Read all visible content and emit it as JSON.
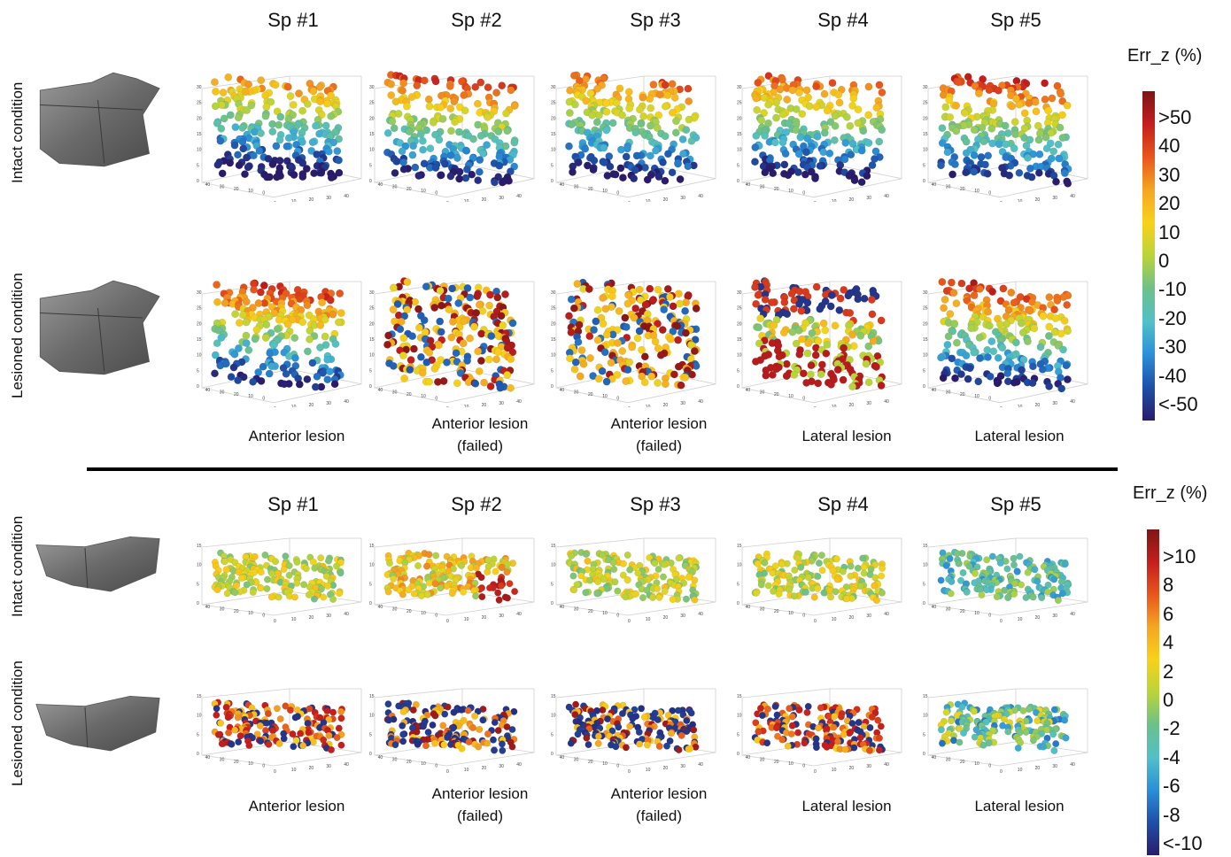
{
  "panels": [
    {
      "specimens": [
        "Sp #1",
        "Sp #2",
        "Sp #3",
        "Sp #4",
        "Sp #5"
      ],
      "row_labels": [
        "Intact condition",
        "Lesioned condition"
      ],
      "lesion_labels": [
        [
          "Anterior lesion"
        ],
        [
          "Anterior lesion",
          "(failed)"
        ],
        [
          "Anterior lesion",
          "(failed)"
        ],
        [
          "Lateral lesion"
        ],
        [
          "Lateral lesion"
        ]
      ],
      "colorbar_title": "Err_z (%)",
      "colorbar_ticks": [
        ">50",
        "40",
        "30",
        "20",
        "10",
        "0",
        "-10",
        "-20",
        "-30",
        "-40",
        "<-50"
      ]
    },
    {
      "specimens": [
        "Sp #1",
        "Sp #2",
        "Sp #3",
        "Sp #4",
        "Sp #5"
      ],
      "row_labels": [
        "Intact condition",
        "Lesioned condition"
      ],
      "lesion_labels": [
        [
          "Anterior lesion"
        ],
        [
          "Anterior lesion",
          "(failed)"
        ],
        [
          "Anterior lesion",
          "(failed)"
        ],
        [
          "Lateral lesion"
        ],
        [
          "Lateral lesion"
        ]
      ],
      "colorbar_title": "Err_z (%)",
      "colorbar_ticks": [
        ">10",
        "8",
        "6",
        "4",
        "2",
        "0",
        "-2",
        "-4",
        "-6",
        "-8",
        "<-10"
      ]
    }
  ],
  "colors": {
    "colormap": [
      "#2a1c6b",
      "#1f4fa8",
      "#2b8fd8",
      "#52c0c8",
      "#6cc08a",
      "#b9d43a",
      "#f7d21a",
      "#f5a623",
      "#e8561c",
      "#c51e1e",
      "#7d1616"
    ]
  }
}
